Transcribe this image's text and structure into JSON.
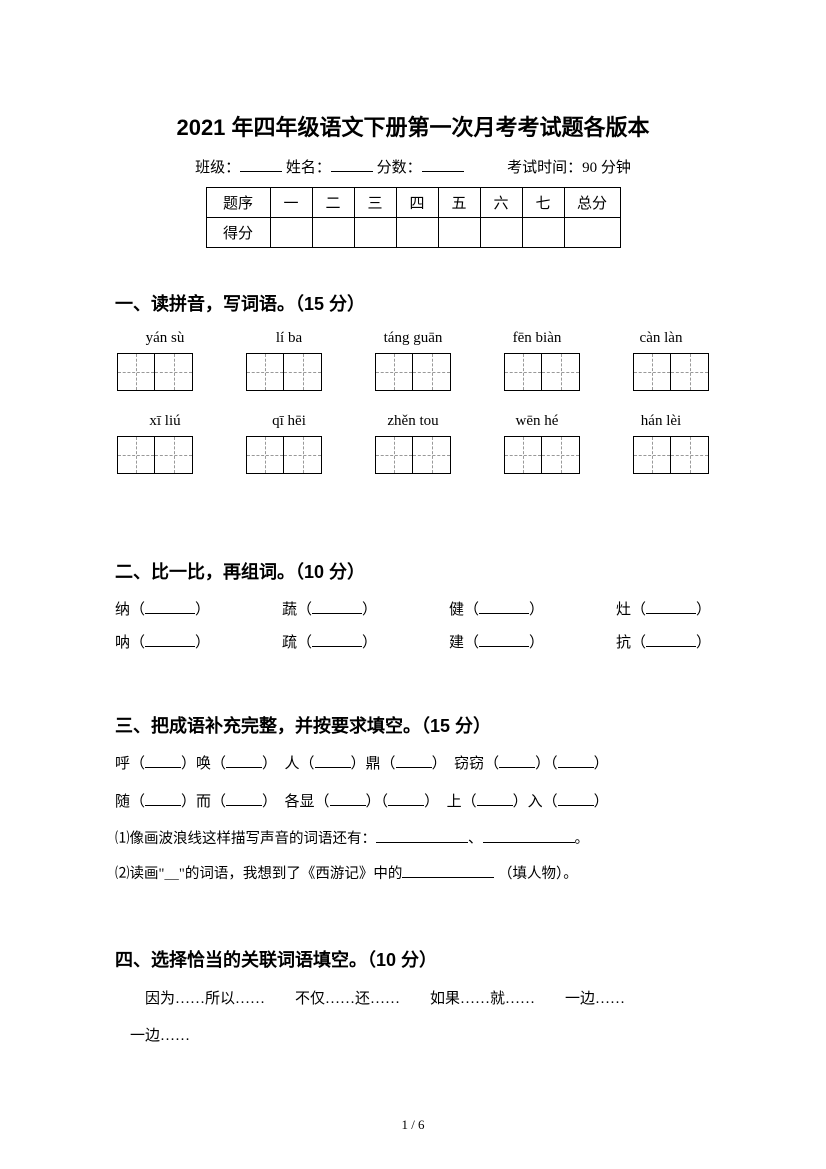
{
  "title": "2021 年四年级语文下册第一次月考考试题各版本",
  "info": {
    "class_label": "班级：",
    "name_label": "姓名：",
    "score_label": "分数：",
    "time_label": "考试时间：90 分钟"
  },
  "score_table": {
    "row1": [
      "题序",
      "一",
      "二",
      "三",
      "四",
      "五",
      "六",
      "七",
      "总分"
    ],
    "row2_label": "得分"
  },
  "section1": {
    "title": "一、读拼音，写词语。（15 分）",
    "row1": [
      "yán sù",
      "lí ba",
      "táng guān",
      "fēn biàn",
      "càn làn"
    ],
    "row2": [
      "xī  liú",
      "qī hēi",
      "zhěn tou",
      "wēn hé",
      "hán lèi"
    ]
  },
  "section2": {
    "title": "二、比一比，再组词。（10 分）",
    "pairs": [
      [
        "纳",
        "蔬",
        "健",
        "灶"
      ],
      [
        "呐",
        "疏",
        "建",
        "抗"
      ]
    ]
  },
  "section3": {
    "title": "三、把成语补充完整，并按要求填空。（15 分）",
    "line1": [
      "呼（",
      "）唤（",
      "）　人（",
      "）鼎（",
      "）　窃窃（",
      "）（",
      "）"
    ],
    "line2": [
      "随（",
      "）而（",
      "）　各显（",
      "）（",
      "）　上（",
      "）入（",
      "）"
    ],
    "sub1_a": "⑴像画波浪线这样描写声音的词语还有：",
    "sub1_b": "、",
    "sub1_c": "。",
    "sub2_a": "⑵读画\"＿\"的词语，我想到了《西游记》中的",
    "sub2_b": "（填人物）。"
  },
  "section4": {
    "title": "四、选择恰当的关联词语填空。（10 分）",
    "line1": "因为……所以……　　不仅……还……　　如果……就……　　一边……",
    "line2": "一边……"
  },
  "page": "1 / 6"
}
